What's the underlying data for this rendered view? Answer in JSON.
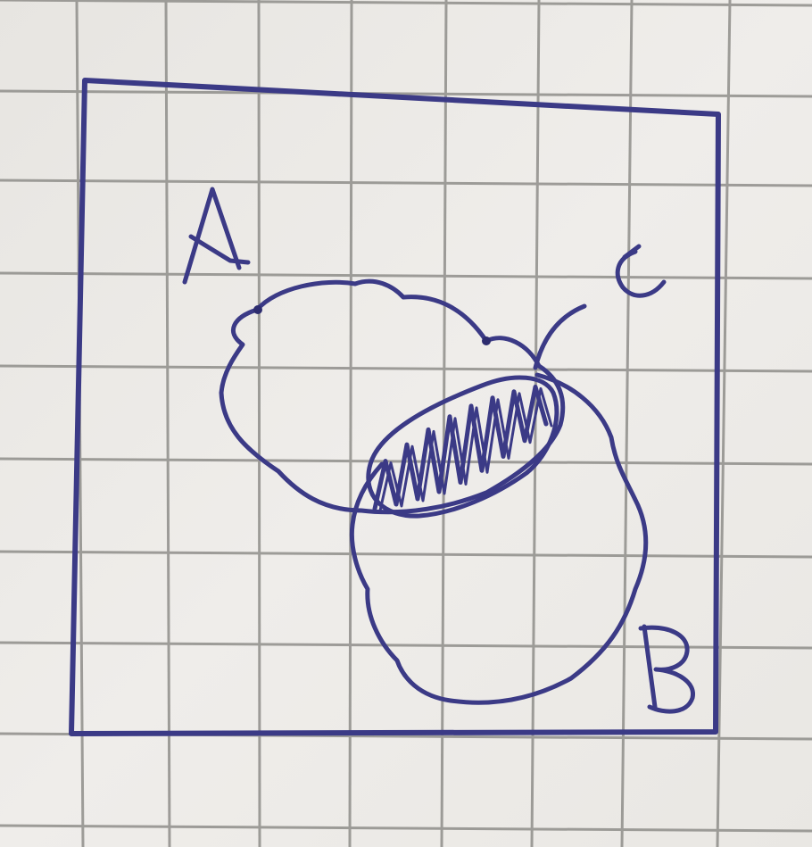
{
  "diagram": {
    "type": "hand-drawn venn diagram on grid paper",
    "labels": {
      "set_a": "A",
      "set_b": "B",
      "universe": "c"
    },
    "shaded_region": "A ∩ B",
    "colors": {
      "ink": "#3b3a86",
      "paper": "#eceae6",
      "grid": "#8f8e8a"
    }
  }
}
